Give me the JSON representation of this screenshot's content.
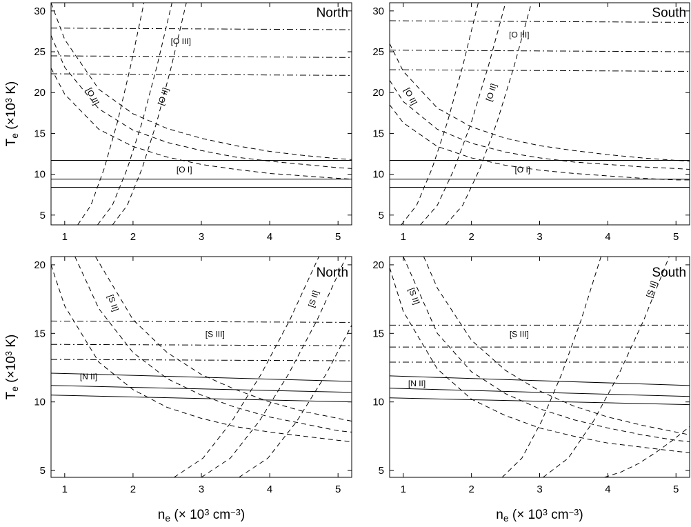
{
  "chart_data": [
    {
      "type": "line",
      "xlim": [
        0.8,
        5.2
      ],
      "ylim": [
        3.8,
        31
      ],
      "xticks": [
        1,
        2,
        3,
        4,
        5
      ],
      "yticks": [
        5,
        10,
        15,
        20,
        25,
        30
      ],
      "ylabel": [
        "T",
        "e",
        " (×10",
        "3",
        " K)"
      ],
      "annotations": [
        "North",
        "[O III]",
        "[O II]",
        "[O II]",
        "[O I]"
      ],
      "series": [
        {
          "color": "#000000",
          "dash": "dashdot",
          "x": [
            0.8,
            5.2
          ],
          "values": [
            27.9,
            27.7
          ]
        },
        {
          "color": "#000000",
          "dash": "dashdot",
          "x": [
            0.8,
            5.2
          ],
          "values": [
            24.5,
            24.3
          ]
        },
        {
          "color": "#000000",
          "dash": "dashdot",
          "x": [
            0.8,
            5.2
          ],
          "values": [
            22.3,
            22.1
          ]
        },
        {
          "color": "#000000",
          "dash": "solid",
          "x": [
            0.8,
            5.2
          ],
          "values": [
            11.7,
            11.7
          ]
        },
        {
          "color": "#000000",
          "dash": "solid",
          "x": [
            0.8,
            5.2
          ],
          "values": [
            9.4,
            9.4
          ]
        },
        {
          "color": "#000000",
          "dash": "solid",
          "x": [
            0.8,
            5.2
          ],
          "values": [
            8.4,
            8.4
          ]
        },
        {
          "color": "#000000",
          "dash": "dash",
          "x": [
            0.8,
            1,
            1.5,
            2,
            2.5,
            3,
            3.5,
            4,
            4.5,
            5,
            5.2
          ],
          "values": [
            31.0,
            26.5,
            20.4,
            17.4,
            15.6,
            14.4,
            13.5,
            12.8,
            12.3,
            11.9,
            11.8
          ]
        },
        {
          "color": "#000000",
          "dash": "dash",
          "x": [
            0.8,
            1,
            1.5,
            2,
            2.5,
            3,
            3.5,
            4,
            4.5,
            5,
            5.2
          ],
          "values": [
            27.0,
            23.1,
            18.0,
            15.4,
            13.9,
            12.9,
            12.1,
            11.6,
            11.2,
            10.8,
            10.7
          ]
        },
        {
          "color": "#000000",
          "dash": "dash",
          "x": [
            0.8,
            1,
            1.5,
            2,
            2.5,
            3,
            3.5,
            4,
            4.5,
            5,
            5.2
          ],
          "values": [
            23.0,
            19.8,
            15.5,
            13.4,
            12.1,
            11.2,
            10.6,
            10.1,
            9.8,
            9.5,
            9.4
          ]
        },
        {
          "color": "#000000",
          "dash": "dash",
          "x": [
            1.19,
            1.384,
            1.578,
            1.772,
            1.966,
            2.16
          ],
          "values": [
            3.8,
            6.2,
            10.7,
            16.4,
            23.3,
            31
          ]
        },
        {
          "color": "#000000",
          "dash": "dash",
          "x": [
            1.48,
            1.698,
            1.916,
            2.134,
            2.352,
            2.57
          ],
          "values": [
            3.8,
            6.2,
            10.7,
            16.4,
            23.3,
            31
          ]
        },
        {
          "color": "#000000",
          "dash": "dash",
          "x": [
            1.7,
            1.916,
            2.132,
            2.348,
            2.564,
            2.78
          ],
          "values": [
            3.8,
            6.2,
            10.7,
            16.4,
            23.3,
            31
          ]
        }
      ]
    },
    {
      "type": "line",
      "xlim": [
        0.8,
        5.2
      ],
      "ylim": [
        3.8,
        31
      ],
      "xticks": [
        1,
        2,
        3,
        4,
        5
      ],
      "yticks": [
        5,
        10,
        15,
        20,
        25,
        30
      ],
      "annotations": [
        "South",
        "[O III]",
        "[O II]",
        "[O II]",
        "[O I]"
      ],
      "series": [
        {
          "color": "#000000",
          "dash": "dashdot",
          "x": [
            0.8,
            5.2
          ],
          "values": [
            28.8,
            28.6
          ]
        },
        {
          "color": "#000000",
          "dash": "dashdot",
          "x": [
            0.8,
            5.2
          ],
          "values": [
            25.2,
            25.0
          ]
        },
        {
          "color": "#000000",
          "dash": "dashdot",
          "x": [
            0.8,
            5.2
          ],
          "values": [
            22.8,
            22.6
          ]
        },
        {
          "color": "#000000",
          "dash": "solid",
          "x": [
            0.8,
            5.2
          ],
          "values": [
            11.7,
            11.7
          ]
        },
        {
          "color": "#000000",
          "dash": "solid",
          "x": [
            0.8,
            5.2
          ],
          "values": [
            9.4,
            9.4
          ]
        },
        {
          "color": "#000000",
          "dash": "solid",
          "x": [
            0.8,
            5.2
          ],
          "values": [
            8.4,
            8.4
          ]
        },
        {
          "color": "#000000",
          "dash": "dash",
          "x": [
            0.8,
            1,
            1.5,
            2,
            2.5,
            3,
            3.5,
            4,
            4.5,
            5,
            5.2
          ],
          "values": [
            26.0,
            22.6,
            18.1,
            15.8,
            14.4,
            13.5,
            12.9,
            12.4,
            12.0,
            11.7,
            11.6
          ]
        },
        {
          "color": "#000000",
          "dash": "dash",
          "x": [
            0.8,
            1,
            1.5,
            2,
            2.5,
            3,
            3.5,
            4,
            4.5,
            5,
            5.2
          ],
          "values": [
            21.5,
            18.9,
            15.5,
            13.8,
            12.7,
            12.0,
            11.5,
            11.2,
            10.9,
            10.7,
            10.6
          ]
        },
        {
          "color": "#000000",
          "dash": "dash",
          "x": [
            0.8,
            1,
            1.5,
            2,
            2.5,
            3,
            3.5,
            4,
            4.5,
            5,
            5.2
          ],
          "values": [
            18.5,
            16.3,
            13.4,
            12.0,
            11.1,
            10.5,
            10.1,
            9.8,
            9.5,
            9.3,
            9.3
          ]
        },
        {
          "color": "#000000",
          "dash": "dash",
          "x": [
            0.97,
            1.196,
            1.422,
            1.648,
            1.874,
            2.1
          ],
          "values": [
            3.8,
            6.2,
            10.7,
            16.4,
            23.3,
            31
          ]
        },
        {
          "color": "#000000",
          "dash": "dash",
          "x": [
            1.25,
            1.5,
            1.75,
            2.0,
            2.25,
            2.5
          ],
          "values": [
            3.8,
            6.2,
            10.7,
            16.4,
            23.3,
            31
          ]
        },
        {
          "color": "#000000",
          "dash": "dash",
          "x": [
            1.62,
            1.872,
            2.124,
            2.376,
            2.628,
            2.88
          ],
          "values": [
            3.8,
            6.2,
            10.7,
            16.4,
            23.3,
            31
          ]
        }
      ]
    },
    {
      "type": "line",
      "xlim": [
        0.8,
        5.2
      ],
      "ylim": [
        4.5,
        20.6
      ],
      "xticks": [
        1,
        2,
        3,
        4,
        5
      ],
      "yticks": [
        5,
        10,
        15,
        20
      ],
      "ylabel": [
        "T",
        "e",
        " (×10",
        "3",
        " K)"
      ],
      "xlabel": [
        "n",
        "e",
        " (× 10",
        "3",
        " cm",
        "−3",
        ")"
      ],
      "annotations": [
        "North",
        "[S II]",
        "[S II]",
        "[S III]",
        "[N II]"
      ],
      "series": [
        {
          "color": "#000000",
          "dash": "dashdot",
          "x": [
            0.8,
            5.2
          ],
          "values": [
            15.9,
            15.8
          ]
        },
        {
          "color": "#000000",
          "dash": "dashdot",
          "x": [
            0.8,
            5.2
          ],
          "values": [
            14.2,
            14.1
          ]
        },
        {
          "color": "#000000",
          "dash": "dashdot",
          "x": [
            0.8,
            5.2
          ],
          "values": [
            13.1,
            13.0
          ]
        },
        {
          "color": "#000000",
          "dash": "solid",
          "x": [
            0.8,
            5.2
          ],
          "values": [
            12.1,
            11.5
          ]
        },
        {
          "color": "#000000",
          "dash": "solid",
          "x": [
            0.8,
            5.2
          ],
          "values": [
            11.2,
            10.7
          ]
        },
        {
          "color": "#000000",
          "dash": "solid",
          "x": [
            0.8,
            5.2
          ],
          "values": [
            10.5,
            10.0
          ]
        },
        {
          "color": "#000000",
          "dash": "dash",
          "x": [
            0.8,
            1,
            1.5,
            2,
            2.5,
            3,
            3.5,
            4,
            4.5,
            5,
            5.2
          ],
          "values": [
            20.0,
            17.0,
            12.9,
            10.9,
            9.6,
            8.8,
            8.2,
            7.8,
            7.5,
            7.2,
            7.1
          ]
        },
        {
          "color": "#000000",
          "dash": "dash",
          "x": [
            1.15,
            1.5,
            2,
            2.5,
            3,
            3.5,
            4,
            4.5,
            5,
            5.2
          ],
          "values": [
            20.6,
            16.8,
            13.6,
            11.7,
            10.5,
            9.6,
            8.9,
            8.4,
            7.9,
            7.8
          ]
        },
        {
          "color": "#000000",
          "dash": "dash",
          "x": [
            1.45,
            2,
            2.5,
            3,
            3.5,
            4,
            4.5,
            5,
            5.2
          ],
          "values": [
            20.6,
            16.0,
            13.6,
            12.0,
            10.9,
            10.0,
            9.3,
            8.8,
            8.6
          ]
        },
        {
          "color": "#000000",
          "dash": "dash",
          "x": [
            2.6,
            3.024,
            3.448,
            3.872,
            4.296,
            4.72
          ],
          "values": [
            4.5,
            5.9,
            8.6,
            12.0,
            16.0,
            20.6
          ]
        },
        {
          "color": "#000000",
          "dash": "dash",
          "x": [
            3.0,
            3.424,
            3.848,
            4.272,
            4.696,
            5.12
          ],
          "values": [
            4.5,
            5.9,
            8.6,
            12.0,
            16.0,
            20.6
          ]
        },
        {
          "color": "#000000",
          "dash": "dash",
          "x": [
            3.55,
            3.974,
            4.398,
            4.822,
            5.2
          ],
          "values": [
            4.5,
            5.9,
            8.6,
            12.0,
            15.6
          ]
        }
      ]
    },
    {
      "type": "line",
      "xlim": [
        0.8,
        5.2
      ],
      "ylim": [
        4.5,
        20.6
      ],
      "xticks": [
        1,
        2,
        3,
        4,
        5
      ],
      "yticks": [
        5,
        10,
        15,
        20
      ],
      "xlabel": [
        "n",
        "e",
        " (× 10",
        "3",
        " cm",
        "−3",
        ")"
      ],
      "annotations": [
        "South",
        "[S II]",
        "[S II]",
        "[S III]",
        "[N II]"
      ],
      "series": [
        {
          "color": "#000000",
          "dash": "dashdot",
          "x": [
            0.8,
            5.2
          ],
          "values": [
            15.6,
            15.6
          ]
        },
        {
          "color": "#000000",
          "dash": "dashdot",
          "x": [
            0.8,
            5.2
          ],
          "values": [
            14.0,
            14.0
          ]
        },
        {
          "color": "#000000",
          "dash": "dashdot",
          "x": [
            0.8,
            5.2
          ],
          "values": [
            12.9,
            12.9
          ]
        },
        {
          "color": "#000000",
          "dash": "solid",
          "x": [
            0.8,
            5.2
          ],
          "values": [
            11.9,
            11.2
          ]
        },
        {
          "color": "#000000",
          "dash": "solid",
          "x": [
            0.8,
            5.2
          ],
          "values": [
            11.0,
            10.4
          ]
        },
        {
          "color": "#000000",
          "dash": "solid",
          "x": [
            0.8,
            5.2
          ],
          "values": [
            10.3,
            9.8
          ]
        },
        {
          "color": "#000000",
          "dash": "dash",
          "x": [
            0.8,
            1,
            1.5,
            2,
            2.5,
            3,
            3.5,
            4,
            4.5,
            5,
            5.2
          ],
          "values": [
            19.8,
            16.6,
            12.4,
            10.2,
            9.0,
            8.1,
            7.5,
            7.0,
            6.7,
            6.4,
            6.3
          ]
        },
        {
          "color": "#000000",
          "dash": "dash",
          "x": [
            1,
            1.5,
            2,
            2.5,
            3,
            3.5,
            4,
            4.5,
            5,
            5.2
          ],
          "values": [
            20.6,
            15.0,
            12.2,
            10.6,
            9.5,
            8.7,
            8.1,
            7.6,
            7.2,
            7.1
          ]
        },
        {
          "color": "#000000",
          "dash": "dash",
          "x": [
            1.3,
            1.5,
            2,
            2.5,
            3,
            3.5,
            4,
            4.5,
            5,
            5.2
          ],
          "values": [
            20.6,
            18.3,
            14.5,
            12.3,
            10.8,
            9.7,
            8.9,
            8.3,
            7.8,
            7.6
          ]
        },
        {
          "color": "#000000",
          "dash": "dash",
          "x": [
            2.45,
            2.74,
            3.03,
            3.32,
            3.61,
            3.9
          ],
          "values": [
            4.5,
            5.9,
            8.6,
            12.0,
            16.0,
            20.6
          ]
        },
        {
          "color": "#000000",
          "dash": "dash",
          "x": [
            3.05,
            3.42,
            3.79,
            4.16,
            4.53,
            4.9
          ],
          "values": [
            4.5,
            5.9,
            8.6,
            12.0,
            16.0,
            20.6
          ]
        },
        {
          "color": "#000000",
          "dash": "dash",
          "x": [
            3.95,
            4.2,
            4.45,
            4.7,
            4.95,
            5.2
          ],
          "values": [
            4.5,
            4.9,
            5.5,
            6.3,
            7.2,
            8.2
          ]
        }
      ]
    }
  ]
}
